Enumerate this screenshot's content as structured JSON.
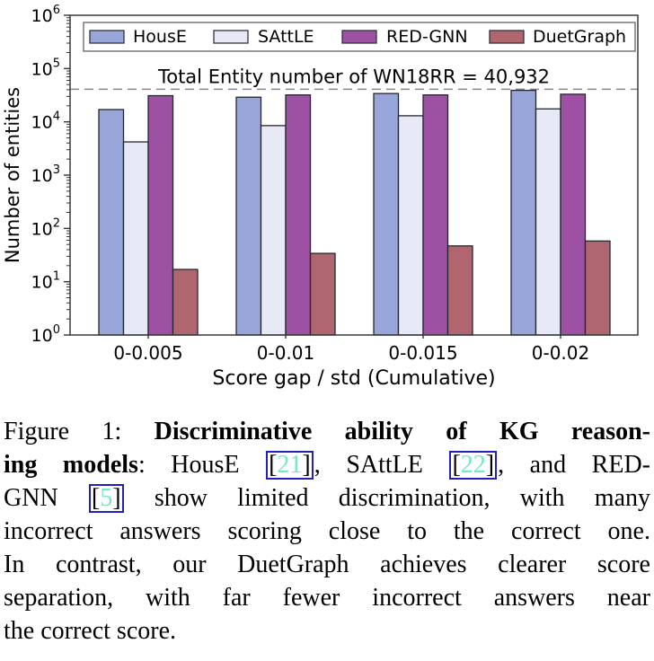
{
  "chart_data": {
    "type": "bar",
    "title": "",
    "categories": [
      "0-0.005",
      "0-0.01",
      "0-0.015",
      "0-0.02"
    ],
    "series": [
      {
        "name": "HousE",
        "color": "#98a6da",
        "values": [
          17000,
          29000,
          34000,
          39000
        ]
      },
      {
        "name": "SAttLE",
        "color": "#e7eaf6",
        "values": [
          4200,
          8500,
          13000,
          17500
        ]
      },
      {
        "name": "RED-GNN",
        "color": "#9c51a2",
        "values": [
          31000,
          32000,
          32000,
          33000
        ]
      },
      {
        "name": "DuetGraph",
        "color": "#af666e",
        "values": [
          17,
          34,
          47,
          58
        ]
      }
    ],
    "bar_edge_color": "#26262e",
    "xlabel": "Score gap / std (Cumulative)",
    "ylabel": "Number of entities",
    "yscale": "log",
    "ytick_base": "10",
    "ytick_exponents": [
      0,
      1,
      2,
      3,
      4,
      5,
      6
    ],
    "ylim": [
      1,
      1000000
    ],
    "grid": false,
    "legend_position": "top-inside",
    "reference_line": {
      "value": 40932,
      "label": "Total Entity number of WN18RR = 40,932",
      "style": "dashed",
      "color": "#8a8a8a"
    }
  },
  "caption": {
    "cite_open": "[",
    "cite_close": "]",
    "cite_color": "#75e8c0",
    "cite_border_color": "#2121b8",
    "lines": [
      {
        "segments": [
          {
            "text": "Figure 1: "
          },
          {
            "text": "Discriminative ability of KG reason-",
            "bold": true
          }
        ]
      },
      {
        "segments": [
          {
            "text": "ing models",
            "bold": true
          },
          {
            "text": ": HousE "
          },
          {
            "cite": "21"
          },
          {
            "text": ", SAttLE "
          },
          {
            "cite": "22"
          },
          {
            "text": ", and RED-"
          }
        ]
      },
      {
        "segments": [
          {
            "text": "GNN "
          },
          {
            "cite": "5"
          },
          {
            "text": " show limited discrimination, with many"
          }
        ]
      },
      {
        "segments": [
          {
            "text": "incorrect answers scoring close to the correct one."
          }
        ]
      },
      {
        "segments": [
          {
            "text": "In contrast, our DuetGraph achieves clearer score"
          }
        ]
      },
      {
        "segments": [
          {
            "text": "separation, with far fewer incorrect answers near"
          }
        ]
      },
      {
        "segments": [
          {
            "text": "the correct score."
          }
        ],
        "last": true
      }
    ]
  }
}
